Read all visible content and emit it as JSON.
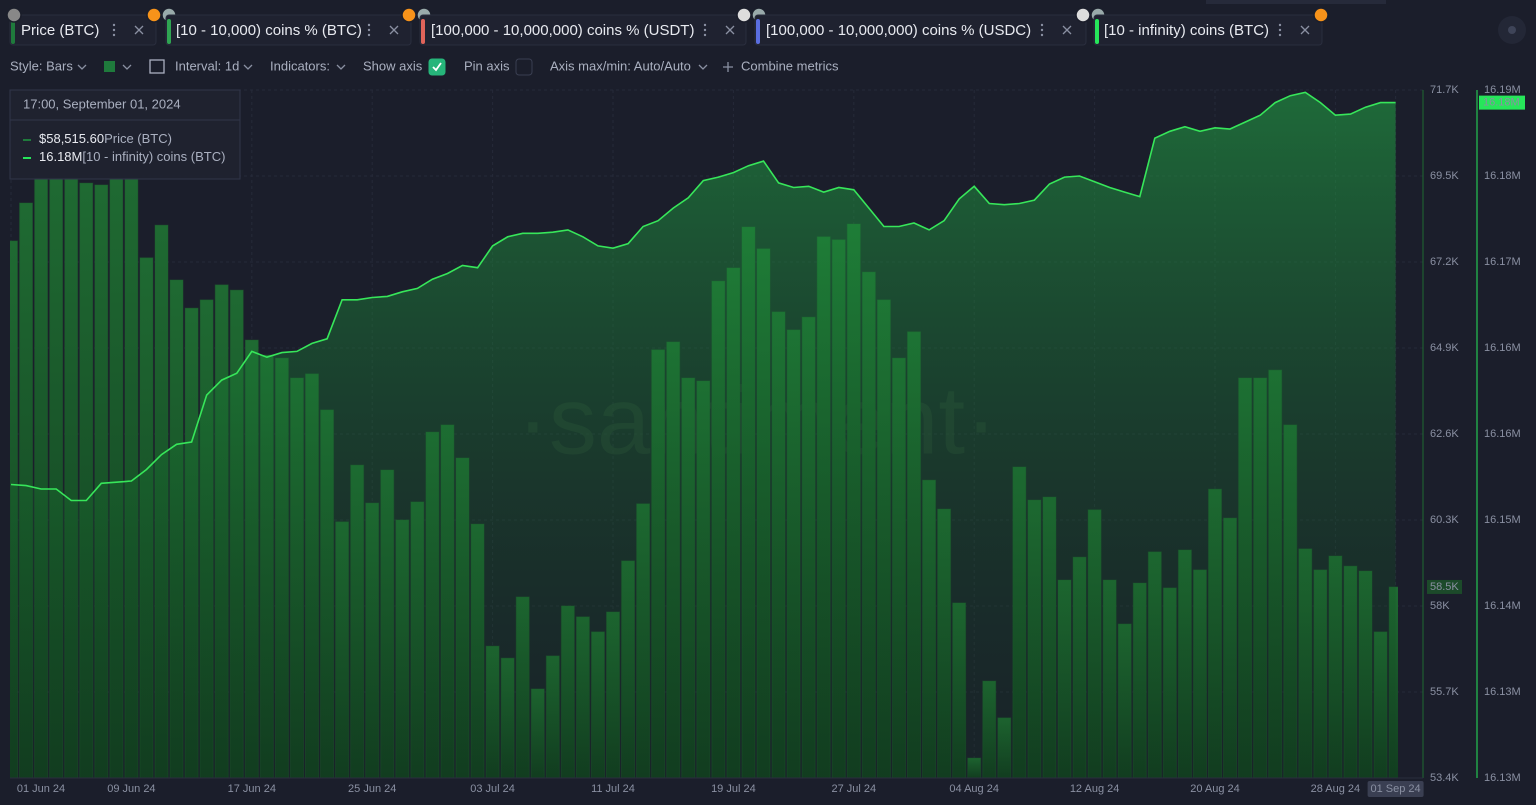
{
  "tabs": [
    {
      "label": "Price (BTC)",
      "color": "#1f7a3c"
    },
    {
      "label": "[10 - 10,000) coins % (BTC)",
      "color": "#2fa552"
    },
    {
      "label": "[100,000 - 10,000,000) coins % (USDT)",
      "color": "#e0645a"
    },
    {
      "label": "[100,000 - 10,000,000) coins % (USDC)",
      "color": "#5a6ee0"
    },
    {
      "label": "[10 - infinity) coins (BTC)",
      "color": "#26e65a"
    }
  ],
  "toolbar": {
    "style": "Style: Bars",
    "interval": "Interval: 1d",
    "indicators": "Indicators:",
    "show_axis": "Show axis",
    "show_axis_checked": true,
    "pin_axis": "Pin axis",
    "pin_axis_checked": false,
    "axis_minmax": "Axis max/min: Auto/Auto",
    "combine": "Combine metrics"
  },
  "tooltip": {
    "date": "17:00, September 01, 2024",
    "items": [
      {
        "value": "$58,515.60",
        "name": "Price (BTC)",
        "color": "#1f7a3c"
      },
      {
        "value": "16.18M",
        "name": "[10 - infinity) coins (BTC)",
        "color": "#26e65a"
      }
    ]
  },
  "chart_data": {
    "type": "combo",
    "watermark": "·santiment·",
    "categories": [
      "01 Jun 24",
      null,
      null,
      null,
      null,
      null,
      null,
      null,
      "09 Jun 24",
      null,
      null,
      null,
      null,
      null,
      null,
      null,
      "17 Jun 24",
      null,
      null,
      null,
      null,
      null,
      null,
      null,
      "25 Jun 24",
      null,
      null,
      null,
      null,
      null,
      null,
      null,
      "03 Jul 24",
      null,
      null,
      null,
      null,
      null,
      null,
      null,
      "11 Jul 24",
      null,
      null,
      null,
      null,
      null,
      null,
      null,
      "19 Jul 24",
      null,
      null,
      null,
      null,
      null,
      null,
      null,
      "27 Jul 24",
      null,
      null,
      null,
      null,
      null,
      null,
      null,
      "04 Aug 24",
      null,
      null,
      null,
      null,
      null,
      null,
      null,
      "12 Aug 24",
      null,
      null,
      null,
      null,
      null,
      null,
      null,
      "20 Aug 24",
      null,
      null,
      null,
      null,
      null,
      null,
      null,
      "28 Aug 24",
      null,
      null,
      null,
      "01 Sep 24"
    ],
    "series": [
      {
        "name": "Price (BTC)",
        "type": "bar",
        "axis": "y",
        "color": "#1d5e2e",
        "values": [
          67730,
          68740,
          69410,
          69410,
          69410,
          69270,
          69220,
          69410,
          69410,
          67280,
          68150,
          66690,
          65940,
          66160,
          66560,
          66420,
          65090,
          64690,
          64610,
          64080,
          64190,
          63230,
          60250,
          61760,
          60750,
          61630,
          60300,
          60780,
          62640,
          62830,
          61950,
          60190,
          56940,
          56620,
          58250,
          55800,
          56680,
          58010,
          57720,
          57320,
          57850,
          59210,
          60730,
          64830,
          65040,
          64080,
          64000,
          66660,
          67010,
          68100,
          67520,
          65840,
          65360,
          65700,
          67840,
          67760,
          68180,
          66900,
          66160,
          64610,
          65310,
          61360,
          60590,
          58090,
          53960,
          56010,
          55030,
          61710,
          60830,
          60910,
          58700,
          59310,
          60570,
          58700,
          57530,
          58620,
          59450,
          58490,
          59500,
          58970,
          61120,
          60350,
          64080,
          64080,
          64290,
          62830,
          59530,
          58970,
          59340,
          59070,
          58940,
          57320,
          58515.6
        ]
      },
      {
        "name": "[10 - infinity) coins (BTC)",
        "type": "area",
        "axis": "y2",
        "color": "#37e65a",
        "values": [
          16151600,
          16151500,
          16151200,
          16151200,
          16150200,
          16150200,
          16151700,
          16151800,
          16151900,
          16152900,
          16154200,
          16155100,
          16155300,
          16159400,
          16160700,
          16161300,
          16163200,
          16162700,
          16163100,
          16163200,
          16163900,
          16164300,
          16167700,
          16167700,
          16167900,
          16168000,
          16168400,
          16168700,
          16169500,
          16170000,
          16170700,
          16170500,
          16172400,
          16173200,
          16173500,
          16173500,
          16173600,
          16173800,
          16173200,
          16172400,
          16172200,
          16172600,
          16174100,
          16174600,
          16175700,
          16176600,
          16178100,
          16178400,
          16178800,
          16179400,
          16179800,
          16177900,
          16177500,
          16177600,
          16177100,
          16177500,
          16177300,
          16175700,
          16174100,
          16174100,
          16174400,
          16173800,
          16174600,
          16176500,
          16177600,
          16176100,
          16176000,
          16176100,
          16176400,
          16177800,
          16178400,
          16178500,
          16178000,
          16177500,
          16177100,
          16176700,
          16181800,
          16182400,
          16182800,
          16182400,
          16182700,
          16182600,
          16183200,
          16183800,
          16184900,
          16185500,
          16185800,
          16184900,
          16183800,
          16183900,
          16184500,
          16184900,
          16184900
        ]
      }
    ],
    "ylim": [
      53428,
      71748
    ],
    "yticks": [
      {
        "value": 71748,
        "label": "71.7K"
      },
      {
        "value": 69458,
        "label": "69.5K"
      },
      {
        "value": 67168,
        "label": "67.2K"
      },
      {
        "value": 64878,
        "label": "64.9K"
      },
      {
        "value": 62588,
        "label": "62.6K"
      },
      {
        "value": 60298,
        "label": "60.3K"
      },
      {
        "value": 58008,
        "label": "58K"
      },
      {
        "value": 55718,
        "label": "55.7K"
      },
      {
        "value": 53428,
        "label": "53.4K"
      }
    ],
    "y2lim": [
      16126000,
      16186000
    ],
    "y2ticks": [
      {
        "value": 16186000,
        "label": "16.19M"
      },
      {
        "value": 16178500,
        "label": "16.18M"
      },
      {
        "value": 16171000,
        "label": "16.17M"
      },
      {
        "value": 16163500,
        "label": "16.16M"
      },
      {
        "value": 16156000,
        "label": "16.16M"
      },
      {
        "value": 16148500,
        "label": "16.15M"
      },
      {
        "value": 16141000,
        "label": "16.14M"
      },
      {
        "value": 16133500,
        "label": "16.13M"
      },
      {
        "value": 16126000,
        "label": "16.13M"
      }
    ],
    "price_marker_label": "58.5K",
    "coins_marker_label": "16.18M",
    "grid": true
  }
}
